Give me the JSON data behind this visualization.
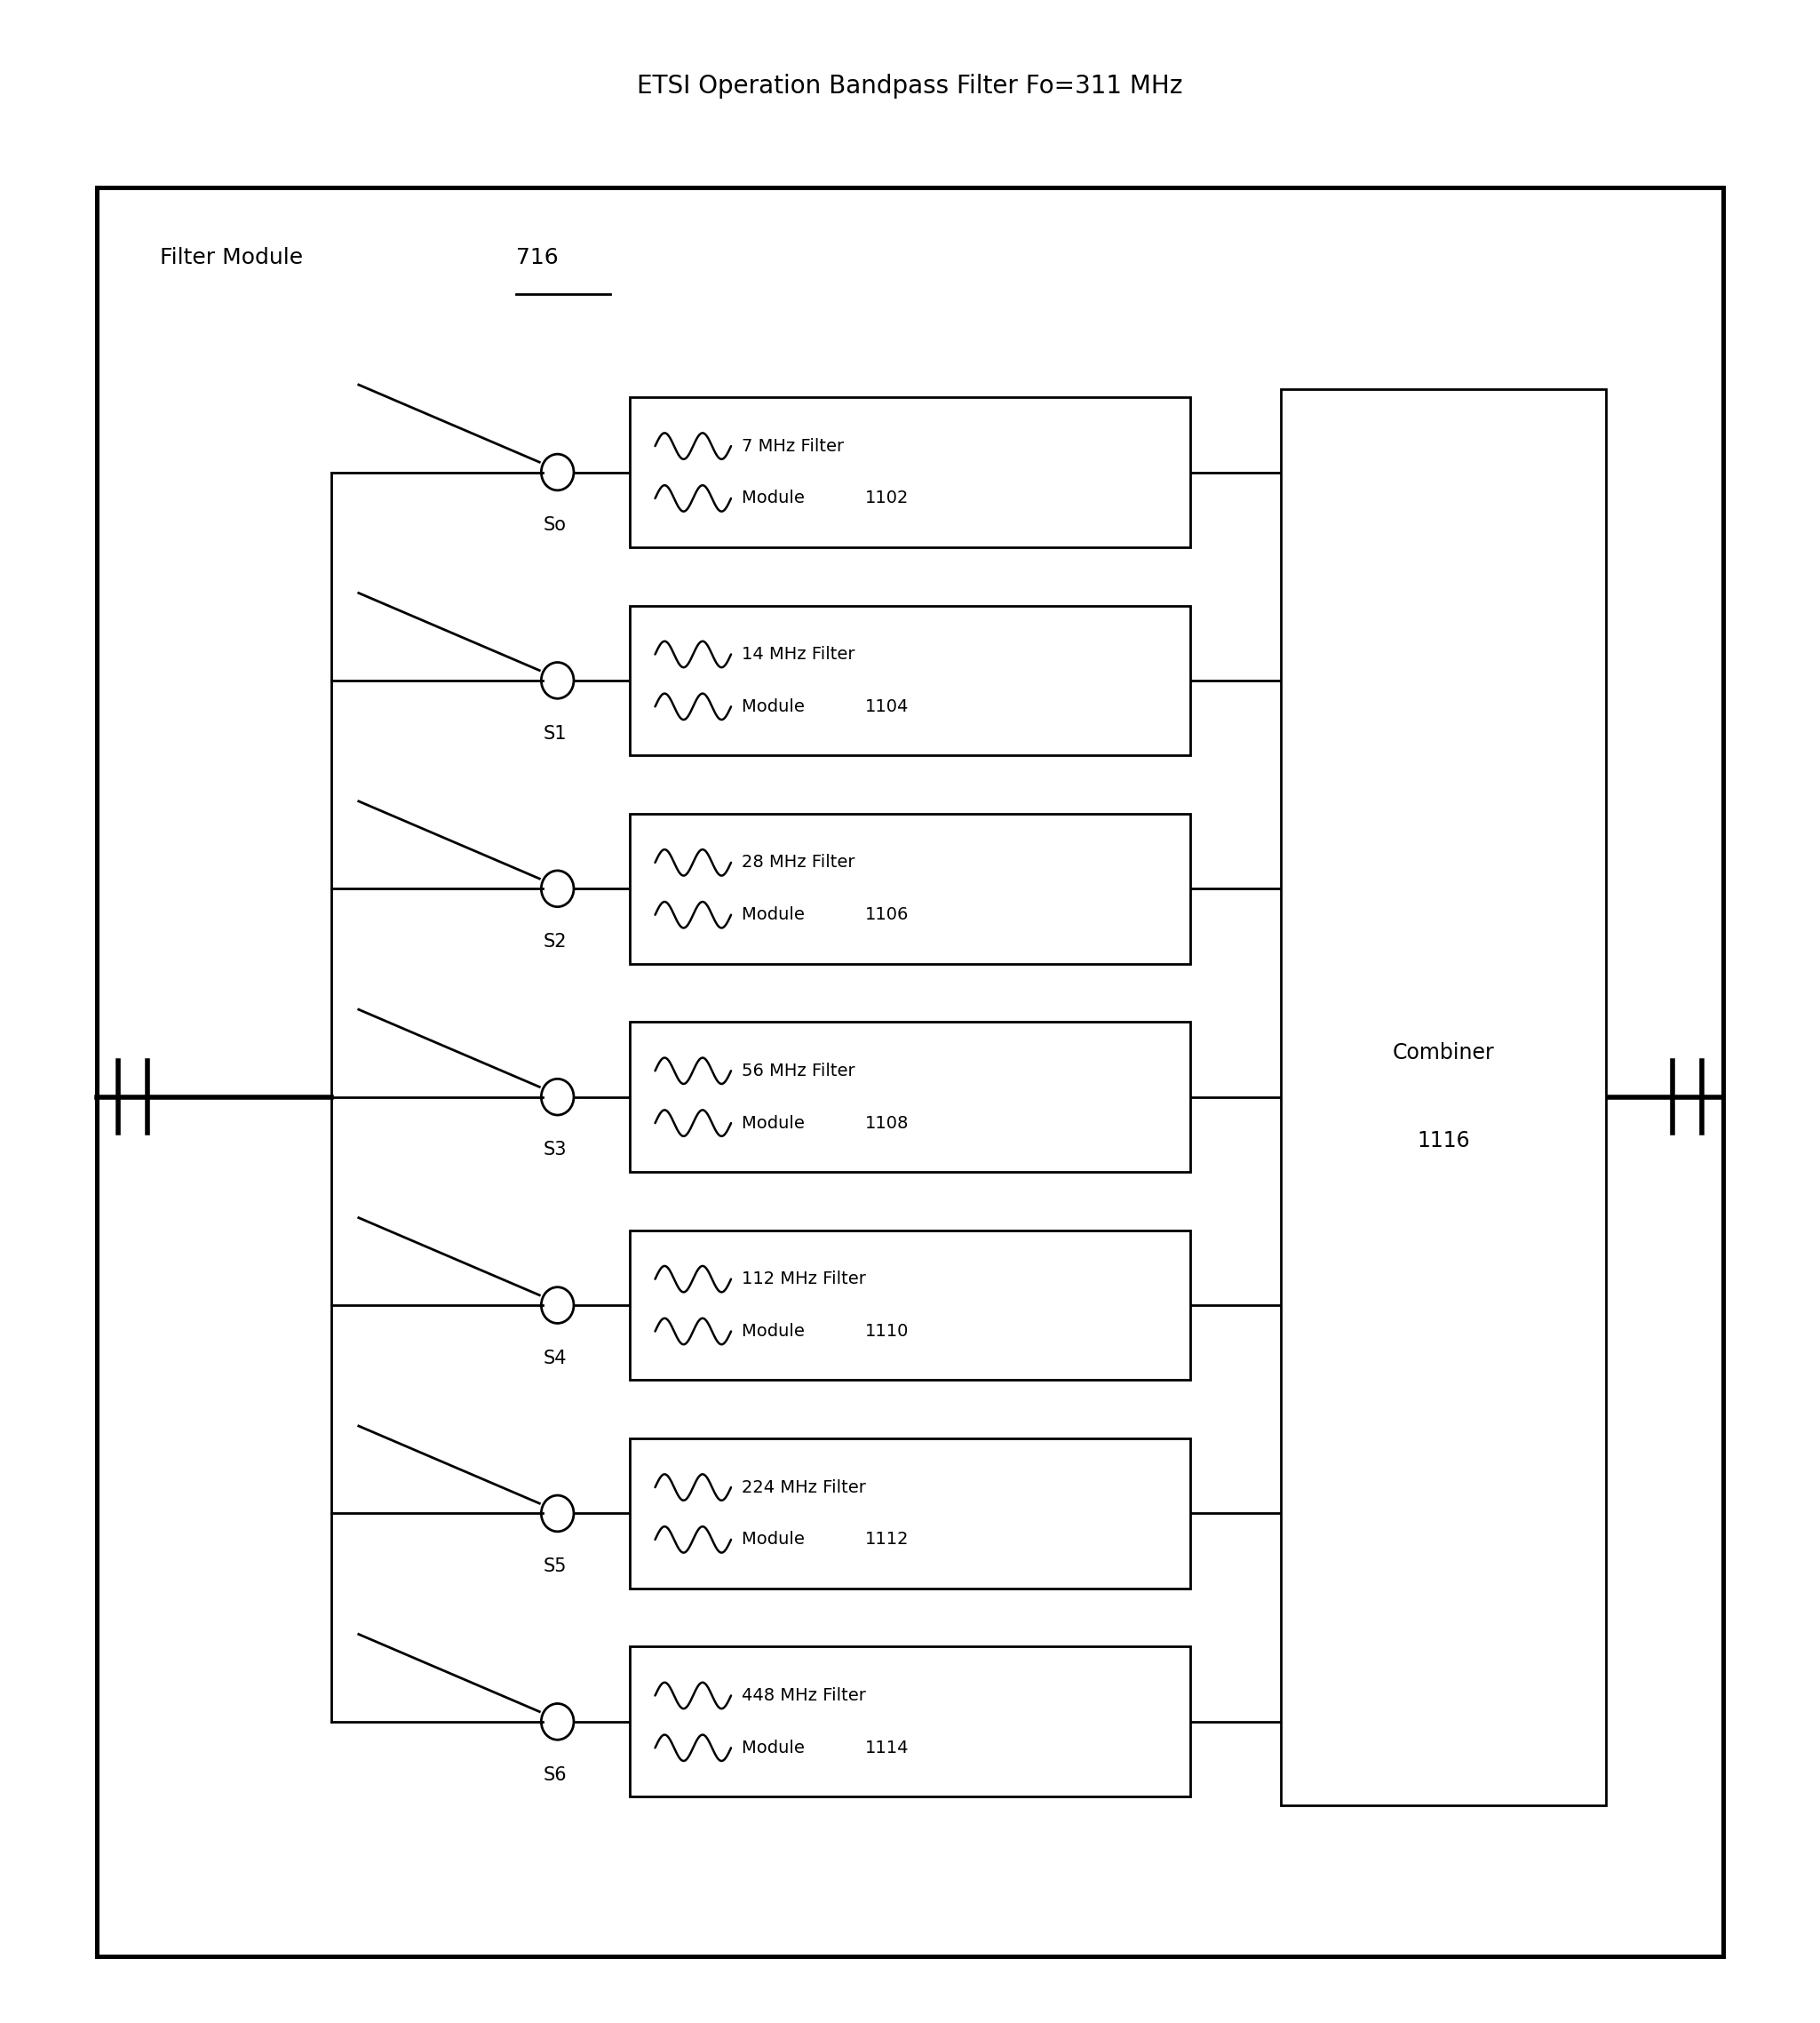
{
  "title": "ETSI Operation Bandpass Filter Fo=311 MHz",
  "title_fontsize": 20,
  "filters": [
    {
      "line1": "7 MHz Filter",
      "line2": "Module ",
      "number": "1102",
      "switch": "So"
    },
    {
      "line1": "14 MHz Filter",
      "line2": "Module ",
      "number": "1104",
      "switch": "S1"
    },
    {
      "line1": "28 MHz Filter",
      "line2": "Module ",
      "number": "1106",
      "switch": "S2"
    },
    {
      "line1": "56 MHz Filter",
      "line2": "Module ",
      "number": "1108",
      "switch": "S3"
    },
    {
      "line1": "112 MHz Filter",
      "line2": "Module ",
      "number": "1110",
      "switch": "S4"
    },
    {
      "line1": "224 MHz Filter",
      "line2": "Module ",
      "number": "1112",
      "switch": "S5"
    },
    {
      "line1": "448 MHz Filter",
      "line2": "Module ",
      "number": "1114",
      "switch": "S6"
    }
  ],
  "background_color": "#ffffff",
  "line_color": "#000000",
  "lw": 2.0
}
